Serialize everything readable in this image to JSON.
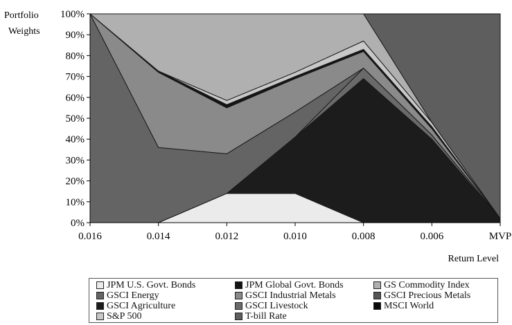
{
  "chart_data": {
    "type": "area",
    "stacked": true,
    "ylabel": "Portfolio\nWeights",
    "xlabel": "Return Level",
    "categories": [
      "0.016",
      "0.014",
      "0.012",
      "0.010",
      "0.008",
      "0.006",
      "MVP"
    ],
    "ylim": [
      0,
      100
    ],
    "yticks": [
      "0%",
      "10%",
      "20%",
      "30%",
      "40%",
      "50%",
      "60%",
      "70%",
      "80%",
      "90%",
      "100%"
    ],
    "grid": false,
    "legend_placement": "bottom",
    "series": [
      {
        "name": "JPM U.S. Govt. Bonds",
        "color": "#ebebeb",
        "values": [
          0,
          0,
          14,
          14,
          0,
          0,
          0
        ]
      },
      {
        "name": "GSCI Agriculture",
        "color": "#1c1c1c",
        "values": [
          0,
          0,
          0,
          27,
          69,
          40,
          2
        ]
      },
      {
        "name": "GSCI Livestock",
        "color": "#6a6a6a",
        "values": [
          0,
          0,
          0,
          0,
          5,
          2,
          0
        ]
      },
      {
        "name": "GSCI Energy",
        "color": "#646464",
        "values": [
          100,
          36,
          19,
          12,
          0,
          0,
          0
        ]
      },
      {
        "name": "GSCI Industrial Metals",
        "color": "#8a8a8a",
        "values": [
          0,
          36,
          22,
          16,
          8,
          3,
          0
        ]
      },
      {
        "name": "JPM Global Govt. Bonds",
        "color": "#141414",
        "values": [
          0,
          0.6,
          1.5,
          1,
          1,
          1,
          0
        ]
      },
      {
        "name": "S&P 500",
        "color": "#c8c8c8",
        "values": [
          0,
          0,
          2,
          2,
          4,
          2,
          0
        ]
      },
      {
        "name": "GS Commodity Index",
        "color": "#b0b0b0",
        "values": [
          0,
          27.4,
          41.5,
          28,
          13,
          0,
          0
        ]
      },
      {
        "name": "T-bill Rate",
        "color": "#5e5e5e",
        "values": [
          0,
          0,
          0,
          0,
          0,
          52,
          98
        ]
      }
    ],
    "legend": [
      {
        "label": "JPM U.S. Govt. Bonds",
        "color": "#ebebeb"
      },
      {
        "label": "JPM Global Govt. Bonds",
        "color": "#141414"
      },
      {
        "label": "GS Commodity Index",
        "color": "#b0b0b0"
      },
      {
        "label": "GSCI Energy",
        "color": "#646464"
      },
      {
        "label": "GSCI Industrial Metals",
        "color": "#8a8a8a"
      },
      {
        "label": "GSCI Precious Metals",
        "color": "#555555"
      },
      {
        "label": "GSCI Agriculture",
        "color": "#1c1c1c"
      },
      {
        "label": "GSCI Livestock",
        "color": "#6a6a6a"
      },
      {
        "label": "MSCI World",
        "color": "#0a0a0a"
      },
      {
        "label": "S&P 500",
        "color": "#c8c8c8"
      },
      {
        "label": "T-bill Rate",
        "color": "#5e5e5e"
      }
    ]
  }
}
